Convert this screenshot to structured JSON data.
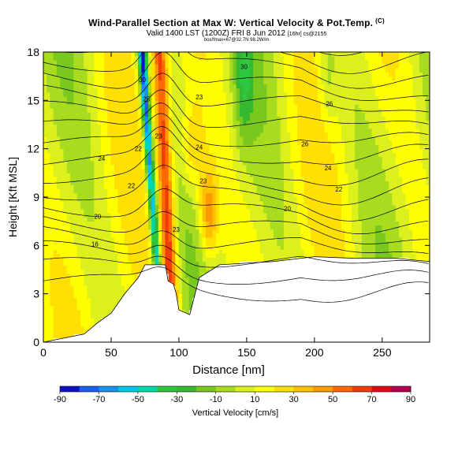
{
  "title": {
    "main": "Wind-Parallel Section at Max W: Vertical Velocity & Pot.Temp.",
    "copyright": "(C)",
    "valid": "Valid 1400 LST (1200Z) FRI 8 Jun 2012",
    "valid_extra": "[16hr] cs@2155",
    "tiny": "box/fmax=67@32.7N 98.2W/m"
  },
  "chart_data": {
    "type": "heatmap",
    "title": "Wind-Parallel Section at Max W: Vertical Velocity & Pot.Temp.",
    "xlabel": "Distance [nm]",
    "ylabel": "Height [Kft MSL]",
    "xlim": [
      0,
      285
    ],
    "ylim": [
      0,
      18
    ],
    "xticks": [
      0,
      50,
      100,
      150,
      200,
      250
    ],
    "yticks": [
      0,
      3,
      6,
      9,
      12,
      15,
      18
    ],
    "colorbar": {
      "label": "Vertical Velocity [cm/s]",
      "levels": [
        -90,
        -80,
        -70,
        -60,
        -50,
        -40,
        -30,
        -20,
        -10,
        0,
        10,
        20,
        30,
        40,
        50,
        60,
        70,
        80,
        90
      ],
      "tick_labels": [
        -90,
        -70,
        -50,
        -30,
        -10,
        10,
        30,
        50,
        70,
        90
      ],
      "colors": [
        "#1111c8",
        "#1d5ef0",
        "#1592f0",
        "#00c8e6",
        "#00d8aa",
        "#2ec840",
        "#36b830",
        "#78c81e",
        "#a8dc1e",
        "#dcf01e",
        "#ffff00",
        "#ffe000",
        "#ffc000",
        "#ff9900",
        "#ff6a00",
        "#f03c0a",
        "#dc0a14",
        "#b40050"
      ]
    },
    "isentrope_labels": [
      "16",
      "20",
      "22",
      "23",
      "24",
      "25",
      "26",
      "28",
      "30"
    ],
    "terrain_top_kft": [
      [
        0,
        0.0
      ],
      [
        18,
        0.3
      ],
      [
        30,
        0.5
      ],
      [
        40,
        1.2
      ],
      [
        50,
        1.8
      ],
      [
        60,
        3.0
      ],
      [
        70,
        4.0
      ],
      [
        75,
        4.8
      ],
      [
        90,
        4.8
      ],
      [
        92,
        3.8
      ],
      [
        96,
        3.6
      ],
      [
        98,
        3.0
      ],
      [
        100,
        2.0
      ],
      [
        108,
        1.7
      ],
      [
        115,
        4.0
      ],
      [
        130,
        4.8
      ],
      [
        170,
        5.0
      ],
      [
        200,
        5.3
      ],
      [
        230,
        5.2
      ],
      [
        260,
        5.2
      ],
      [
        285,
        5.0
      ]
    ],
    "updraft_axis": {
      "base_x_nm": 96,
      "top_x_nm": 86,
      "peak_cm_s": 70
    },
    "downdraft_axis": {
      "base_x_nm": 88,
      "top_x_nm": 73,
      "peak_cm_s": -90
    }
  }
}
